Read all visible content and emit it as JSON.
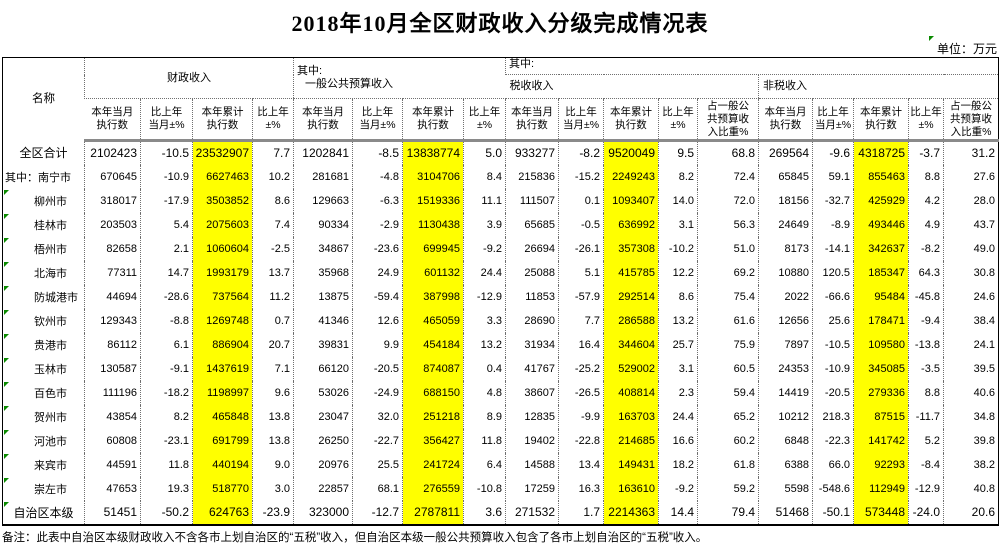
{
  "title": "2018年10月全区财政收入分级完成情况表",
  "unit_label": "单位：万元",
  "note": "备注：此表中自治区本级财政收入不含各市上划自治区的“五税”收入，但自治区本级一般公共预算收入包含了各市上划自治区的“五税”收入。",
  "colors": {
    "highlight": "#ffff00",
    "flag_green": "#0a8a00"
  },
  "table": {
    "name_header": "名称",
    "qizhong_label": "其中:",
    "groups": [
      {
        "prefix": "",
        "label": "财政收入"
      },
      {
        "prefix": "其中:",
        "label": "一般公共预算收入"
      },
      {
        "prefix": "其中:",
        "label": "税收收入"
      },
      {
        "prefix": "",
        "label": "非税收入"
      }
    ],
    "columns": [
      {
        "label": "本年当月\n执行数",
        "yellow": false
      },
      {
        "label": "比上年\n当月±%",
        "yellow": false
      },
      {
        "label": "本年累计\n执行数",
        "yellow": true
      },
      {
        "label": "比上年\n±%",
        "yellow": false
      },
      {
        "label": "本年当月\n执行数",
        "yellow": false
      },
      {
        "label": "比上年\n当月±%",
        "yellow": false
      },
      {
        "label": "本年累计\n执行数",
        "yellow": true
      },
      {
        "label": "比上年\n±%",
        "yellow": false
      },
      {
        "label": "本年当月\n执行数",
        "yellow": false
      },
      {
        "label": "比上年\n当月±%",
        "yellow": false
      },
      {
        "label": "本年累计\n执行数",
        "yellow": true
      },
      {
        "label": "比上年\n±%",
        "yellow": false
      },
      {
        "label": "占一般公\n共预算收\n入比重%",
        "yellow": false
      },
      {
        "label": "本年当月\n执行数",
        "yellow": false
      },
      {
        "label": "比上年\n当月±%",
        "yellow": false
      },
      {
        "label": "本年累计\n执行数",
        "yellow": true
      },
      {
        "label": "比上年\n±%",
        "yellow": false
      },
      {
        "label": "占一般公\n共预算收\n入比重%",
        "yellow": false
      }
    ],
    "rows": [
      {
        "name": "全区合计",
        "prefix": "",
        "align": "center",
        "bold": true,
        "flag": false,
        "values": [
          "2102423",
          "-10.5",
          "23532907",
          "7.7",
          "1202841",
          "-8.5",
          "13838774",
          "5.0",
          "933277",
          "-8.2",
          "9520049",
          "9.5",
          "68.8",
          "269564",
          "-9.6",
          "4318725",
          "-3.7",
          "31.2"
        ]
      },
      {
        "name": "南宁市",
        "prefix": "其中：",
        "align": "prefix",
        "bold": false,
        "flag": false,
        "values": [
          "670645",
          "-10.9",
          "6627463",
          "10.2",
          "281681",
          "-4.8",
          "3104706",
          "8.4",
          "215836",
          "-15.2",
          "2249243",
          "8.2",
          "72.4",
          "65845",
          "59.1",
          "855463",
          "8.8",
          "27.6"
        ]
      },
      {
        "name": "柳州市",
        "prefix": "",
        "align": "indent",
        "bold": false,
        "flag": true,
        "values": [
          "318017",
          "-17.9",
          "3503852",
          "8.6",
          "129663",
          "-6.3",
          "1519336",
          "11.1",
          "111507",
          "0.1",
          "1093407",
          "14.0",
          "72.0",
          "18156",
          "-32.7",
          "425929",
          "4.2",
          "28.0"
        ]
      },
      {
        "name": "桂林市",
        "prefix": "",
        "align": "indent",
        "bold": false,
        "flag": true,
        "values": [
          "203503",
          "5.4",
          "2075603",
          "7.4",
          "90334",
          "-2.9",
          "1130438",
          "3.9",
          "65685",
          "-0.5",
          "636992",
          "3.1",
          "56.3",
          "24649",
          "-8.9",
          "493446",
          "4.9",
          "43.7"
        ]
      },
      {
        "name": "梧州市",
        "prefix": "",
        "align": "indent",
        "bold": false,
        "flag": true,
        "values": [
          "82658",
          "2.1",
          "1060604",
          "-2.5",
          "34867",
          "-23.6",
          "699945",
          "-9.2",
          "26694",
          "-26.1",
          "357308",
          "-10.2",
          "51.0",
          "8173",
          "-14.1",
          "342637",
          "-8.2",
          "49.0"
        ]
      },
      {
        "name": "北海市",
        "prefix": "",
        "align": "indent",
        "bold": false,
        "flag": true,
        "values": [
          "77311",
          "14.7",
          "1993179",
          "13.7",
          "35968",
          "24.9",
          "601132",
          "24.4",
          "25088",
          "5.1",
          "415785",
          "12.2",
          "69.2",
          "10880",
          "120.5",
          "185347",
          "64.3",
          "30.8"
        ]
      },
      {
        "name": "防城港市",
        "prefix": "",
        "align": "indent",
        "bold": false,
        "flag": true,
        "values": [
          "44694",
          "-28.6",
          "737564",
          "11.2",
          "13875",
          "-59.4",
          "387998",
          "-12.9",
          "11853",
          "-57.9",
          "292514",
          "8.6",
          "75.4",
          "2022",
          "-66.6",
          "95484",
          "-45.8",
          "24.6"
        ]
      },
      {
        "name": "钦州市",
        "prefix": "",
        "align": "indent",
        "bold": false,
        "flag": true,
        "values": [
          "129343",
          "-8.8",
          "1269748",
          "0.7",
          "41346",
          "12.6",
          "465059",
          "3.3",
          "28690",
          "7.7",
          "286588",
          "13.2",
          "61.6",
          "12656",
          "25.6",
          "178471",
          "-9.4",
          "38.4"
        ]
      },
      {
        "name": "贵港市",
        "prefix": "",
        "align": "indent",
        "bold": false,
        "flag": true,
        "values": [
          "86112",
          "6.1",
          "886904",
          "20.7",
          "39831",
          "9.9",
          "454184",
          "13.2",
          "31934",
          "16.4",
          "344604",
          "25.7",
          "75.9",
          "7897",
          "-10.5",
          "109580",
          "-13.8",
          "24.1"
        ]
      },
      {
        "name": "玉林市",
        "prefix": "",
        "align": "indent",
        "bold": false,
        "flag": true,
        "values": [
          "130587",
          "-9.1",
          "1437619",
          "7.1",
          "66120",
          "-20.5",
          "874087",
          "0.4",
          "41767",
          "-25.2",
          "529002",
          "3.1",
          "60.5",
          "24353",
          "-10.9",
          "345085",
          "-3.5",
          "39.5"
        ]
      },
      {
        "name": "百色市",
        "prefix": "",
        "align": "indent",
        "bold": false,
        "flag": true,
        "values": [
          "111196",
          "-18.2",
          "1198997",
          "9.6",
          "53026",
          "-24.9",
          "688150",
          "4.8",
          "38607",
          "-26.5",
          "408814",
          "2.3",
          "59.4",
          "14419",
          "-20.5",
          "279336",
          "8.8",
          "40.6"
        ]
      },
      {
        "name": "贺州市",
        "prefix": "",
        "align": "indent",
        "bold": false,
        "flag": true,
        "values": [
          "43854",
          "8.2",
          "465848",
          "13.8",
          "23047",
          "32.0",
          "251218",
          "8.9",
          "12835",
          "-9.9",
          "163703",
          "24.4",
          "65.2",
          "10212",
          "218.3",
          "87515",
          "-11.7",
          "34.8"
        ]
      },
      {
        "name": "河池市",
        "prefix": "",
        "align": "indent",
        "bold": false,
        "flag": true,
        "values": [
          "60808",
          "-23.1",
          "691799",
          "13.8",
          "26250",
          "-22.7",
          "356427",
          "11.8",
          "19402",
          "-22.8",
          "214685",
          "16.6",
          "60.2",
          "6848",
          "-22.3",
          "141742",
          "5.2",
          "39.8"
        ]
      },
      {
        "name": "来宾市",
        "prefix": "",
        "align": "indent",
        "bold": false,
        "flag": true,
        "values": [
          "44591",
          "11.8",
          "440194",
          "9.0",
          "20976",
          "25.5",
          "241724",
          "6.4",
          "14588",
          "13.4",
          "149431",
          "18.2",
          "61.8",
          "6388",
          "66.0",
          "92293",
          "-8.4",
          "38.2"
        ]
      },
      {
        "name": "崇左市",
        "prefix": "",
        "align": "indent",
        "bold": false,
        "flag": true,
        "values": [
          "47653",
          "19.3",
          "518770",
          "3.0",
          "22857",
          "68.1",
          "276559",
          "-10.8",
          "17259",
          "16.3",
          "163610",
          "-9.2",
          "59.2",
          "5598",
          "-548.6",
          "112949",
          "-12.9",
          "40.8"
        ]
      },
      {
        "name": "自治区本级",
        "prefix": "",
        "align": "center",
        "bold": true,
        "flag": true,
        "values": [
          "51451",
          "-50.2",
          "624763",
          "-23.9",
          "323000",
          "-12.7",
          "2787811",
          "3.6",
          "271532",
          "1.7",
          "2214363",
          "14.4",
          "79.4",
          "51468",
          "-50.1",
          "573448",
          "-24.0",
          "20.6"
        ]
      }
    ]
  }
}
